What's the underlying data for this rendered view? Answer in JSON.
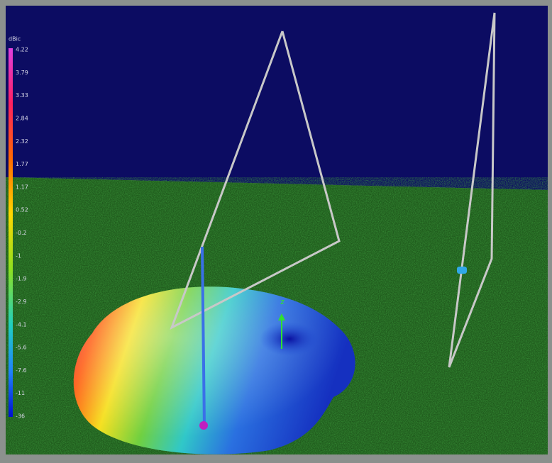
{
  "colorbar": {
    "unit": "dBic",
    "labels": [
      "4.22",
      "3.79",
      "3.33",
      "2.84",
      "2.32",
      "1.77",
      "1.17",
      "0.52",
      "-0.2",
      "-1",
      "-1.9",
      "-2.9",
      "-4.1",
      "-5.6",
      "-7.6",
      "-11",
      "-36"
    ]
  },
  "axis_label": "z"
}
